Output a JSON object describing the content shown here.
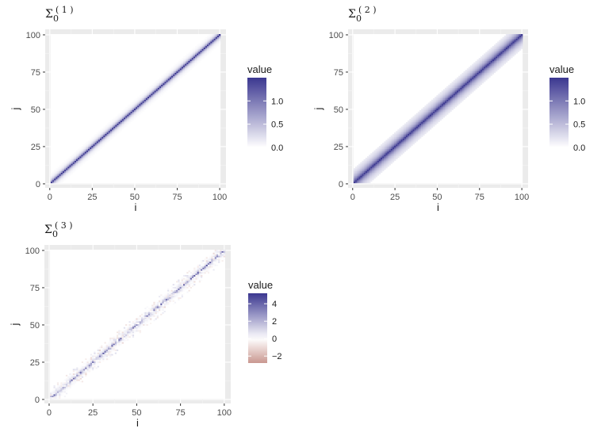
{
  "chart_data": [
    {
      "id": "sigma1",
      "type": "heatmap",
      "title": {
        "main": "Σ",
        "sub": "0",
        "sup": "( 1 )"
      },
      "xlabel": "i",
      "ylabel": "j",
      "xlim": [
        1,
        100
      ],
      "ylim": [
        1,
        100
      ],
      "x_ticks": [
        0,
        25,
        50,
        75,
        100
      ],
      "y_ticks": [
        0,
        25,
        50,
        75,
        100
      ],
      "grid": true,
      "legend": {
        "title": "value",
        "position": "right",
        "range": [
          0,
          1.5
        ],
        "ticks": [
          0.0,
          0.5,
          1.0
        ],
        "tick_labels": [
          "0.0",
          "0.5",
          "1.0"
        ],
        "low_color": "#ffffff",
        "high_color": "#3b3790"
      },
      "structure": {
        "diagonal_value": 1.5,
        "decay_per_step": 0.5,
        "band_halfwidth": 6,
        "noise": false
      }
    },
    {
      "id": "sigma2",
      "type": "heatmap",
      "title": {
        "main": "Σ",
        "sub": "0",
        "sup": "( 2 )"
      },
      "xlabel": "i",
      "ylabel": "j",
      "xlim": [
        1,
        100
      ],
      "ylim": [
        1,
        100
      ],
      "x_ticks": [
        0,
        25,
        50,
        75,
        100
      ],
      "y_ticks": [
        0,
        25,
        50,
        75,
        100
      ],
      "grid": true,
      "legend": {
        "title": "value",
        "position": "right",
        "range": [
          0,
          1.5
        ],
        "ticks": [
          0.0,
          0.5,
          1.0
        ],
        "tick_labels": [
          "0.0",
          "0.5",
          "1.0"
        ],
        "low_color": "#ffffff",
        "high_color": "#3b3790"
      },
      "structure": {
        "diagonal_value": 1.5,
        "decay_per_step": 0.78,
        "band_halfwidth": 9,
        "noise": false
      }
    },
    {
      "id": "sigma3",
      "type": "heatmap",
      "title": {
        "main": "Σ",
        "sub": "0",
        "sup": "( 3 )"
      },
      "xlabel": "i",
      "ylabel": "j",
      "xlim": [
        1,
        100
      ],
      "ylim": [
        1,
        100
      ],
      "x_ticks": [
        0,
        25,
        50,
        75,
        100
      ],
      "y_ticks": [
        0,
        25,
        50,
        75,
        100
      ],
      "grid": true,
      "legend": {
        "title": "value",
        "position": "right",
        "range": [
          -2.8,
          5.2
        ],
        "ticks": [
          -2,
          0,
          2,
          4
        ],
        "tick_labels": [
          "−2",
          "0",
          "2",
          "4"
        ],
        "low_color": "#c99790",
        "mid_color": "#ffffff",
        "high_color": "#3b3790"
      },
      "structure": {
        "diagonal_value": 3.5,
        "decay_per_step": 0.4,
        "band_halfwidth": 4,
        "noise": true
      }
    }
  ]
}
